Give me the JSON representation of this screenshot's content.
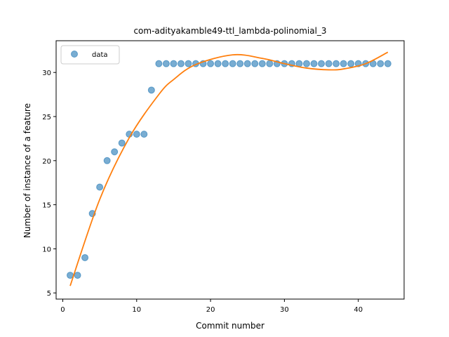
{
  "chart_data": {
    "type": "scatter",
    "title": "com-adityakamble49-ttl_lambda-polinomial_3",
    "xlabel": "Commit number",
    "ylabel": "Number of instance of a feature",
    "xlim": [
      -0.9,
      46.2
    ],
    "ylim": [
      4.3,
      33.6
    ],
    "xticks": [
      0,
      10,
      20,
      30,
      40
    ],
    "yticks": [
      5,
      10,
      15,
      20,
      25,
      30
    ],
    "grid": false,
    "legend_position": "top-left",
    "series": [
      {
        "name": "data",
        "kind": "markers",
        "color": "#1f77b4",
        "x": [
          1,
          2,
          3,
          4,
          5,
          6,
          7,
          8,
          9,
          10,
          11,
          12,
          13,
          14,
          15,
          16,
          17,
          18,
          19,
          20,
          21,
          22,
          23,
          24,
          25,
          26,
          27,
          28,
          29,
          30,
          31,
          32,
          33,
          34,
          35,
          36,
          37,
          38,
          39,
          40,
          41,
          42,
          43,
          44
        ],
        "y": [
          7,
          7,
          9,
          14,
          17,
          20,
          21,
          22,
          23,
          23,
          23,
          28,
          31,
          31,
          31,
          31,
          31,
          31,
          31,
          31,
          31,
          31,
          31,
          31,
          31,
          31,
          31,
          31,
          31,
          31,
          31,
          31,
          31,
          31,
          31,
          31,
          31,
          31,
          31,
          31,
          31,
          31,
          31,
          31
        ]
      },
      {
        "kind": "line",
        "color": "#ff7f0e",
        "x": [
          1,
          5,
          9,
          13,
          15,
          18,
          23,
          27,
          30,
          33,
          36,
          38,
          41,
          44
        ],
        "y": [
          5.8,
          15.6,
          22.6,
          27.5,
          29.2,
          30.9,
          32.0,
          31.6,
          31.0,
          30.5,
          30.3,
          30.4,
          31.0,
          32.3
        ]
      }
    ]
  }
}
